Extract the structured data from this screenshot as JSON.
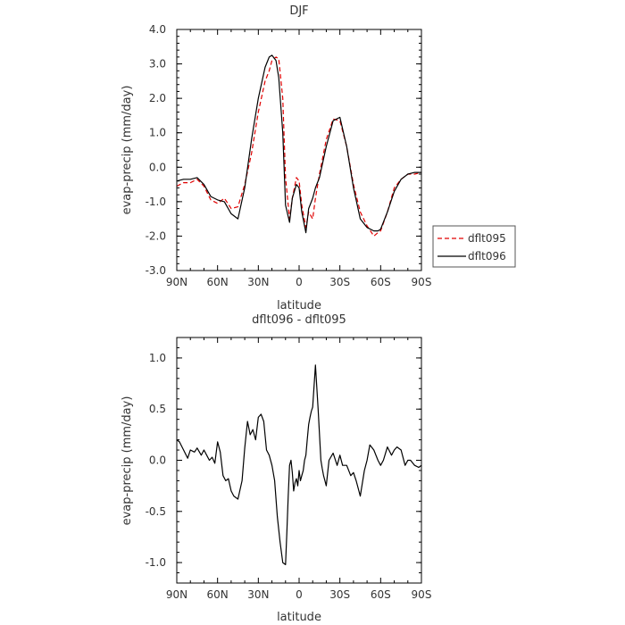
{
  "chart_data": [
    {
      "type": "line",
      "title": "DJF",
      "xlabel": "latitude",
      "ylabel": "evap-precip (mm/day)",
      "xlim": [
        90,
        -90
      ],
      "ylim": [
        -3,
        4
      ],
      "x_ticks": [
        90,
        60,
        30,
        0,
        -30,
        -60,
        -90
      ],
      "x_tick_labels": [
        "90N",
        "60N",
        "30N",
        "0",
        "30S",
        "60S",
        "90S"
      ],
      "y_ticks": [
        -3,
        -2,
        -1,
        0,
        1,
        2,
        3,
        4
      ],
      "y_tick_labels": [
        "-3.0",
        "-2.0",
        "-1.0",
        "0.0",
        "1.0",
        "2.0",
        "3.0",
        "4.0"
      ],
      "legend_position": "right",
      "series": [
        {
          "name": "dflt095",
          "color": "#e00000",
          "style": "dashed",
          "x": [
            90,
            85,
            80,
            75,
            70,
            65,
            60,
            55,
            50,
            45,
            40,
            35,
            30,
            25,
            22,
            20,
            17,
            15,
            12,
            10,
            7,
            5,
            2,
            0,
            -2,
            -5,
            -7,
            -10,
            -12,
            -15,
            -20,
            -25,
            -30,
            -35,
            -40,
            -45,
            -50,
            -55,
            -58,
            -60,
            -65,
            -70,
            -75,
            -80,
            -85,
            -90
          ],
          "y": [
            -0.55,
            -0.45,
            -0.45,
            -0.35,
            -0.55,
            -0.95,
            -1.05,
            -0.9,
            -1.2,
            -1.15,
            -0.5,
            0.4,
            1.6,
            2.5,
            2.8,
            3.1,
            3.2,
            3.15,
            2.0,
            -0.3,
            -1.5,
            -0.9,
            -0.3,
            -0.4,
            -1.1,
            -1.75,
            -1.3,
            -1.5,
            -0.9,
            -0.2,
            0.8,
            1.4,
            1.35,
            0.6,
            -0.5,
            -1.3,
            -1.7,
            -2.0,
            -1.9,
            -1.85,
            -1.3,
            -0.6,
            -0.35,
            -0.2,
            -0.2,
            -0.15
          ]
        },
        {
          "name": "dflt096",
          "color": "#000000",
          "style": "solid",
          "x": [
            90,
            85,
            80,
            75,
            70,
            65,
            60,
            55,
            50,
            45,
            40,
            35,
            30,
            25,
            22,
            20,
            17,
            15,
            12,
            10,
            7,
            5,
            2,
            0,
            -2,
            -5,
            -7,
            -10,
            -12,
            -15,
            -20,
            -25,
            -30,
            -35,
            -40,
            -45,
            -50,
            -55,
            -58,
            -60,
            -65,
            -70,
            -75,
            -80,
            -85,
            -90
          ],
          "y": [
            -0.4,
            -0.35,
            -0.35,
            -0.3,
            -0.5,
            -0.85,
            -0.95,
            -1.0,
            -1.35,
            -1.5,
            -0.6,
            0.8,
            2.0,
            2.9,
            3.2,
            3.25,
            3.1,
            2.6,
            1.0,
            -1.1,
            -1.6,
            -0.9,
            -0.5,
            -0.6,
            -1.3,
            -1.9,
            -1.2,
            -0.9,
            -0.6,
            -0.3,
            0.6,
            1.35,
            1.45,
            0.6,
            -0.6,
            -1.5,
            -1.75,
            -1.85,
            -1.85,
            -1.8,
            -1.3,
            -0.7,
            -0.35,
            -0.2,
            -0.15,
            -0.15
          ]
        }
      ]
    },
    {
      "type": "line",
      "title": "dflt096 - dflt095",
      "xlabel": "latitude",
      "ylabel": "evap-precip (mm/day)",
      "xlim": [
        90,
        -90
      ],
      "ylim": [
        -1.2,
        1.2
      ],
      "x_ticks": [
        90,
        60,
        30,
        0,
        -30,
        -60,
        -90
      ],
      "x_tick_labels": [
        "90N",
        "60N",
        "30N",
        "0",
        "30S",
        "60S",
        "90S"
      ],
      "y_ticks": [
        -1.0,
        -0.5,
        0.0,
        0.5,
        1.0
      ],
      "y_tick_labels": [
        "-1.0",
        "-0.5",
        "0.0",
        "0.5",
        "1.0"
      ],
      "series": [
        {
          "color": "#000000",
          "style": "solid",
          "x": [
            90,
            88,
            85,
            82,
            80,
            77,
            75,
            72,
            70,
            68,
            66,
            64,
            62,
            60,
            58,
            56,
            54,
            52,
            50,
            48,
            45,
            42,
            40,
            38,
            36,
            34,
            32,
            30,
            28,
            26,
            24,
            22,
            20,
            18,
            16,
            14,
            12,
            10,
            9,
            8,
            7,
            6,
            5,
            4,
            3,
            2,
            1,
            0,
            -1,
            -2,
            -3,
            -4,
            -5,
            -6,
            -7,
            -8,
            -9,
            -10,
            -12,
            -14,
            -16,
            -17,
            -18,
            -19,
            -20,
            -22,
            -25,
            -28,
            -30,
            -32,
            -35,
            -38,
            -40,
            -42,
            -45,
            -48,
            -50,
            -52,
            -55,
            -58,
            -60,
            -62,
            -65,
            -68,
            -70,
            -72,
            -75,
            -78,
            -80,
            -82,
            -85,
            -88,
            -90
          ],
          "y": [
            0.2,
            0.18,
            0.1,
            0.02,
            0.1,
            0.08,
            0.12,
            0.05,
            0.1,
            0.05,
            0.0,
            0.03,
            -0.03,
            0.18,
            0.08,
            -0.15,
            -0.2,
            -0.18,
            -0.3,
            -0.35,
            -0.38,
            -0.2,
            0.12,
            0.38,
            0.25,
            0.3,
            0.2,
            0.42,
            0.45,
            0.38,
            0.1,
            0.05,
            -0.05,
            -0.2,
            -0.55,
            -0.8,
            -1.0,
            -1.02,
            -0.7,
            -0.35,
            -0.05,
            0.0,
            -0.12,
            -0.3,
            -0.22,
            -0.18,
            -0.25,
            -0.1,
            -0.2,
            -0.15,
            -0.1,
            0.0,
            0.05,
            0.2,
            0.35,
            0.42,
            0.48,
            0.52,
            0.93,
            0.5,
            0.0,
            -0.08,
            -0.15,
            -0.2,
            -0.25,
            0.0,
            0.07,
            -0.05,
            0.05,
            -0.05,
            -0.05,
            -0.15,
            -0.12,
            -0.2,
            -0.35,
            -0.1,
            0.0,
            0.15,
            0.1,
            0.0,
            -0.05,
            0.0,
            0.13,
            0.05,
            0.1,
            0.13,
            0.1,
            -0.05,
            0.0,
            0.0,
            -0.05,
            -0.07,
            -0.05
          ]
        }
      ]
    }
  ]
}
